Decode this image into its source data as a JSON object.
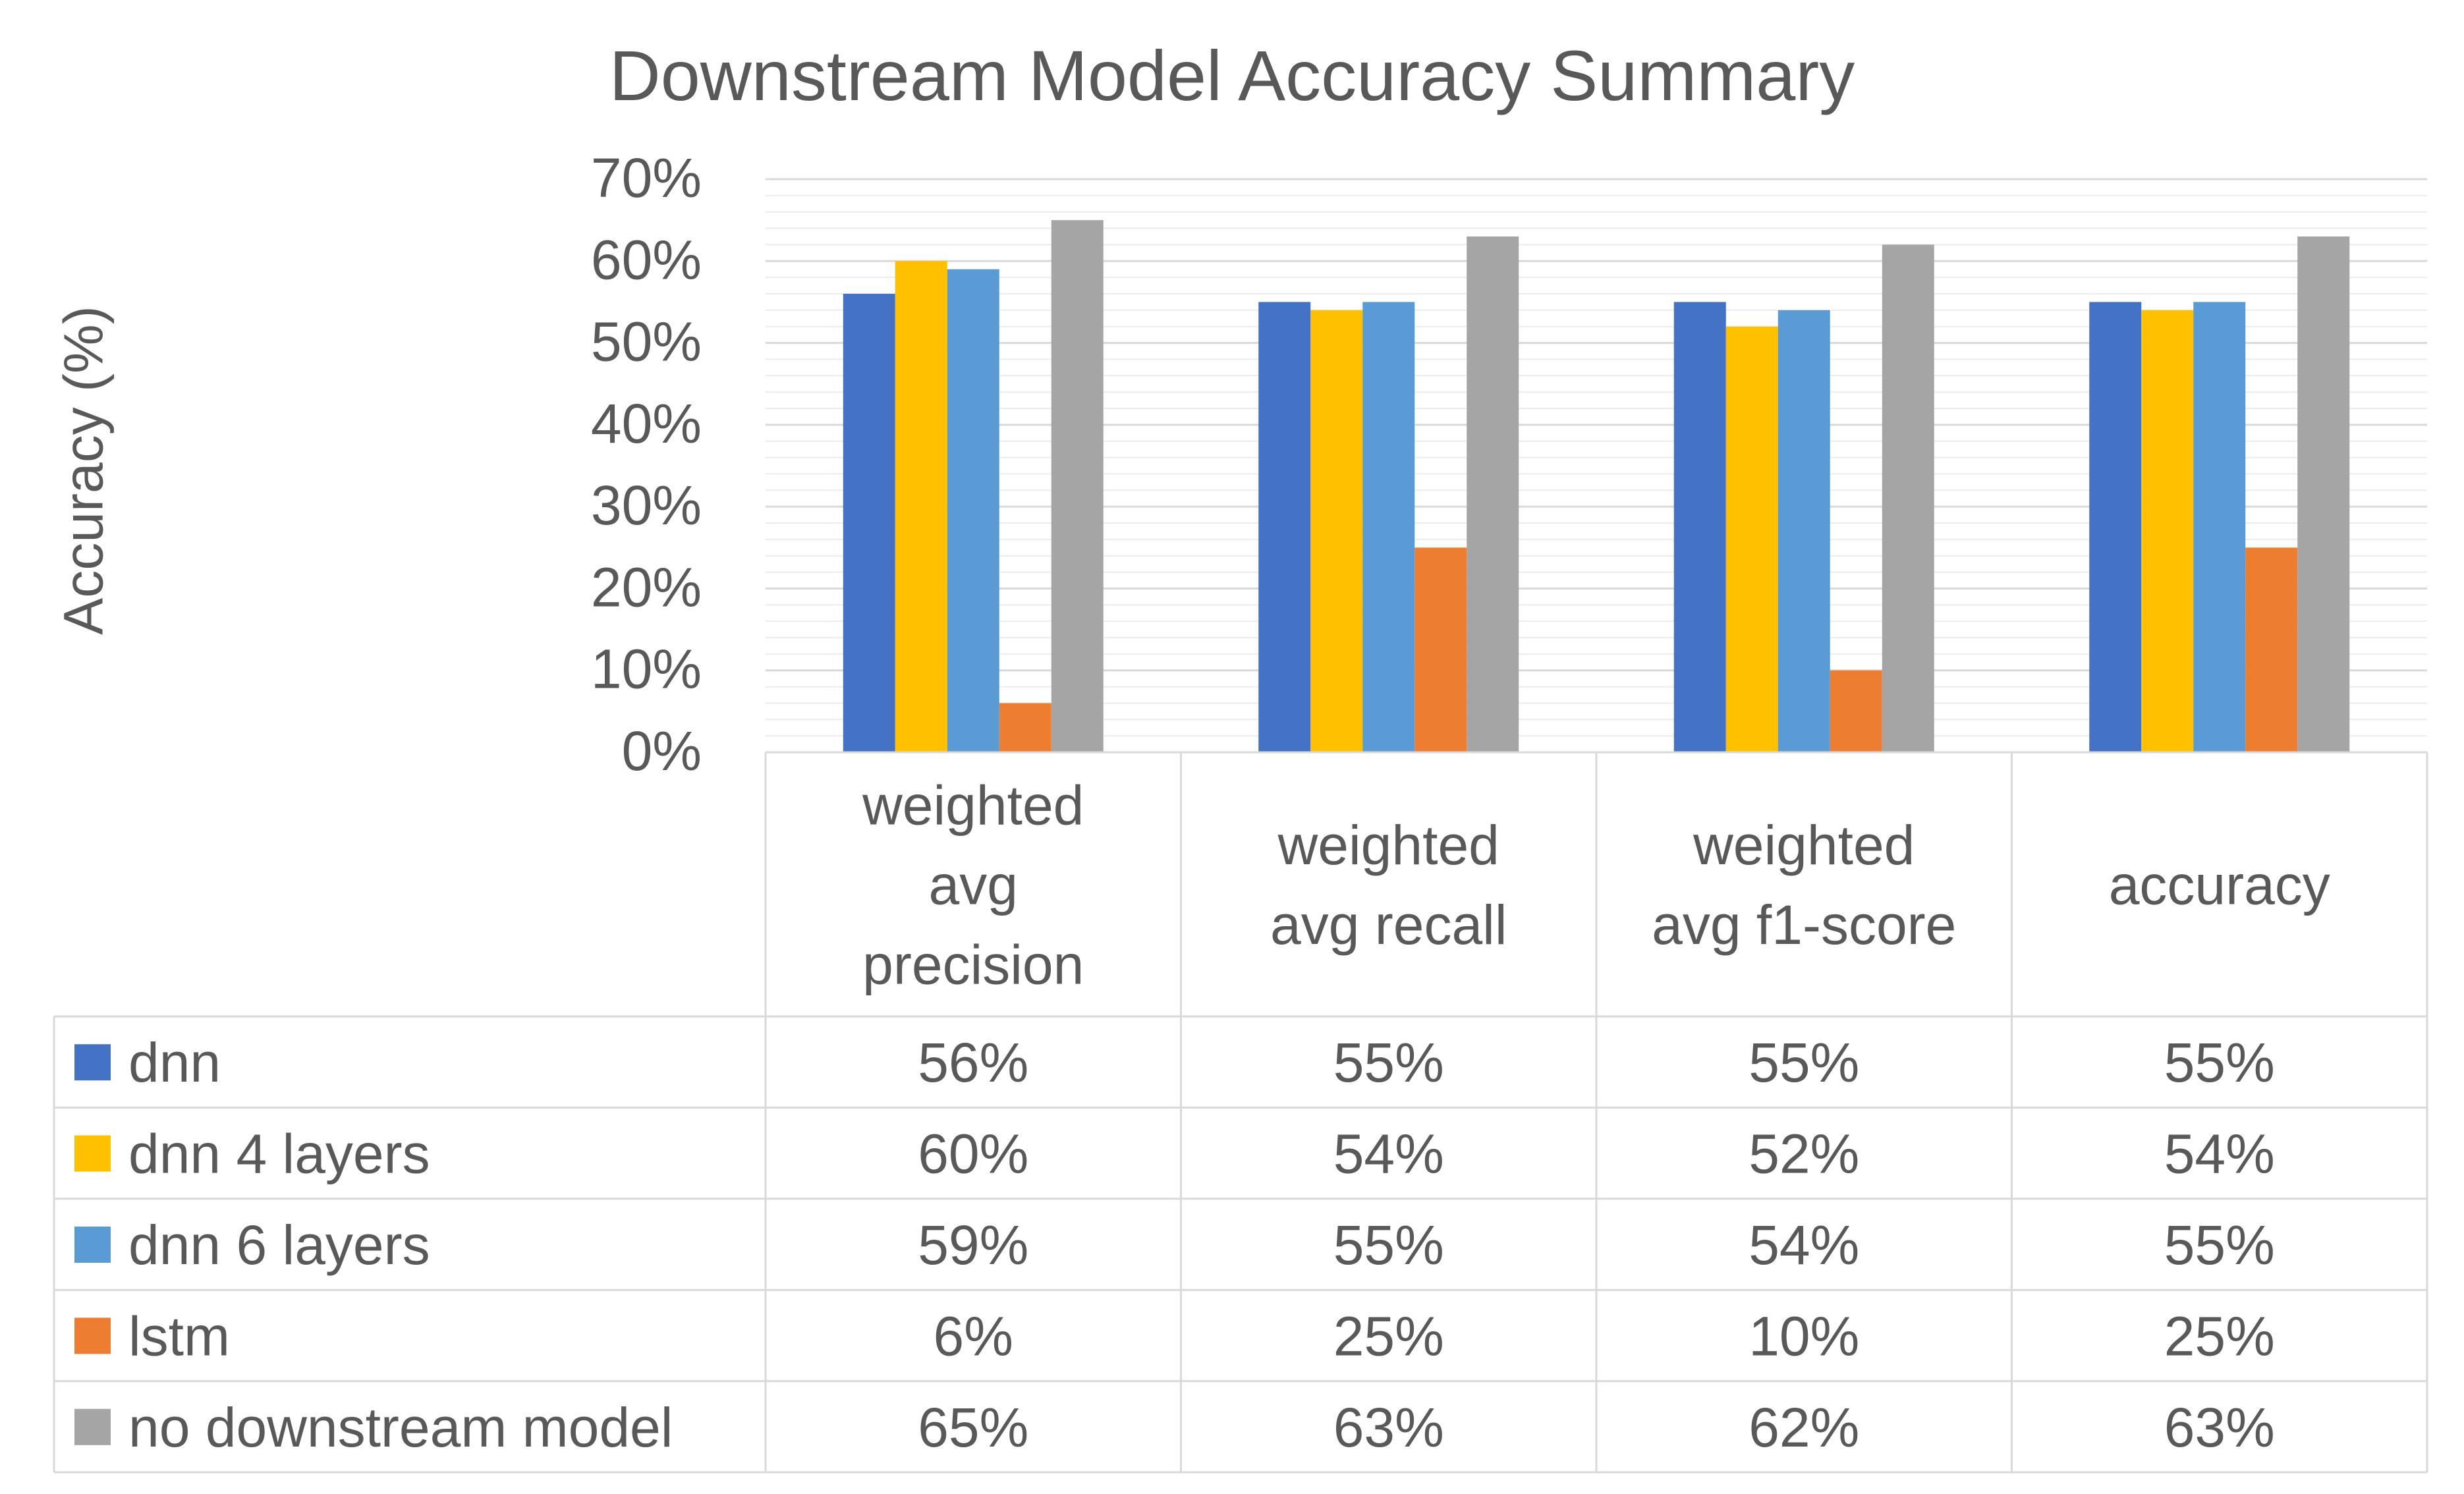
{
  "chart_data": {
    "type": "bar",
    "title": "Downstream Model Accuracy Summary",
    "ylabel": "Accuracy (%)",
    "xlabel": "",
    "ylim": [
      0,
      70
    ],
    "y_ticks": [
      "0%",
      "10%",
      "20%",
      "30%",
      "40%",
      "50%",
      "60%",
      "70%"
    ],
    "y_tick_values": [
      0,
      10,
      20,
      30,
      40,
      50,
      60,
      70
    ],
    "grid": true,
    "legend": "data-table",
    "categories": [
      [
        "weighted",
        "avg",
        "precision"
      ],
      [
        "weighted",
        "avg recall"
      ],
      [
        "weighted",
        "avg f1-score"
      ],
      [
        "accuracy"
      ]
    ],
    "series": [
      {
        "name": "dnn",
        "color": "#4472C4",
        "values": [
          56,
          55,
          55,
          55
        ],
        "labels": [
          "56%",
          "55%",
          "55%",
          "55%"
        ]
      },
      {
        "name": "dnn 4 layers",
        "color": "#FFC000",
        "values": [
          60,
          54,
          52,
          54
        ],
        "labels": [
          "60%",
          "54%",
          "52%",
          "54%"
        ]
      },
      {
        "name": "dnn 6 layers",
        "color": "#5B9BD5",
        "values": [
          59,
          55,
          54,
          55
        ],
        "labels": [
          "59%",
          "55%",
          "54%",
          "55%"
        ]
      },
      {
        "name": "lstm",
        "color": "#ED7D31",
        "values": [
          6,
          25,
          10,
          25
        ],
        "labels": [
          "6%",
          "25%",
          "10%",
          "25%"
        ]
      },
      {
        "name": "no downstream model",
        "color": "#A5A5A5",
        "values": [
          65,
          63,
          62,
          63
        ],
        "labels": [
          "65%",
          "63%",
          "62%",
          "63%"
        ]
      }
    ]
  }
}
